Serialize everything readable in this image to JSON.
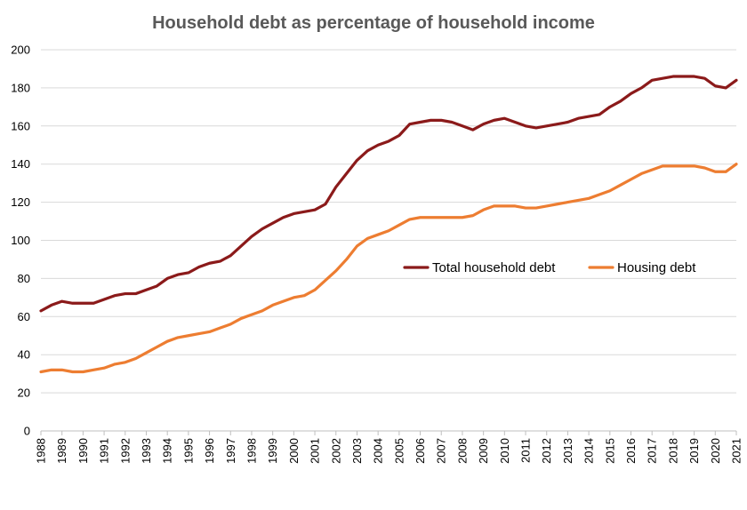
{
  "chart_data": {
    "type": "line",
    "title": "Household debt as percentage of household income",
    "xlabel": "",
    "ylabel": "",
    "ylim": [
      0,
      200
    ],
    "y_ticks": [
      0,
      20,
      40,
      60,
      80,
      100,
      120,
      140,
      160,
      180,
      200
    ],
    "x_ticks": [
      "1988",
      "1989",
      "1990",
      "1991",
      "1992",
      "1993",
      "1994",
      "1995",
      "1996",
      "1997",
      "1998",
      "1999",
      "2000",
      "2001",
      "2002",
      "2003",
      "2004",
      "2005",
      "2006",
      "2007",
      "2008",
      "2009",
      "2010",
      "2011",
      "2012",
      "2013",
      "2014",
      "2015",
      "2016",
      "2017",
      "2018",
      "2019",
      "2020",
      "2021"
    ],
    "grid": "horizontal",
    "legend_position": "center-right",
    "x": [
      1988,
      1988.5,
      1989,
      1989.5,
      1990,
      1990.5,
      1991,
      1991.5,
      1992,
      1992.5,
      1993,
      1993.5,
      1994,
      1994.5,
      1995,
      1995.5,
      1996,
      1996.5,
      1997,
      1997.5,
      1998,
      1998.5,
      1999,
      1999.5,
      2000,
      2000.5,
      2001,
      2001.5,
      2002,
      2002.5,
      2003,
      2003.5,
      2004,
      2004.5,
      2005,
      2005.5,
      2006,
      2006.5,
      2007,
      2007.5,
      2008,
      2008.5,
      2009,
      2009.5,
      2010,
      2010.5,
      2011,
      2011.5,
      2012,
      2012.5,
      2013,
      2013.5,
      2014,
      2014.5,
      2015,
      2015.5,
      2016,
      2016.5,
      2017,
      2017.5,
      2018,
      2018.5,
      2019,
      2019.5,
      2020,
      2020.5,
      2021
    ],
    "series": [
      {
        "name": "Total household debt",
        "color": "#8b1a1a",
        "values": [
          63,
          66,
          68,
          67,
          67,
          67,
          69,
          71,
          72,
          72,
          74,
          76,
          80,
          82,
          83,
          86,
          88,
          89,
          92,
          97,
          102,
          106,
          109,
          112,
          114,
          115,
          116,
          119,
          128,
          135,
          142,
          147,
          150,
          152,
          155,
          161,
          162,
          163,
          163,
          162,
          160,
          158,
          161,
          163,
          164,
          162,
          160,
          159,
          160,
          161,
          162,
          164,
          165,
          166,
          170,
          173,
          177,
          180,
          184,
          185,
          186,
          186,
          186,
          185,
          181,
          180,
          184
        ]
      },
      {
        "name": "Housing debt",
        "color": "#ed7d31",
        "values": [
          31,
          32,
          32,
          31,
          31,
          32,
          33,
          35,
          36,
          38,
          41,
          44,
          47,
          49,
          50,
          51,
          52,
          54,
          56,
          59,
          61,
          63,
          66,
          68,
          70,
          71,
          74,
          79,
          84,
          90,
          97,
          101,
          103,
          105,
          108,
          111,
          112,
          112,
          112,
          112,
          112,
          113,
          116,
          118,
          118,
          118,
          117,
          117,
          118,
          119,
          120,
          121,
          122,
          124,
          126,
          129,
          132,
          135,
          137,
          139,
          139,
          139,
          139,
          138,
          136,
          136,
          140
        ]
      }
    ]
  }
}
